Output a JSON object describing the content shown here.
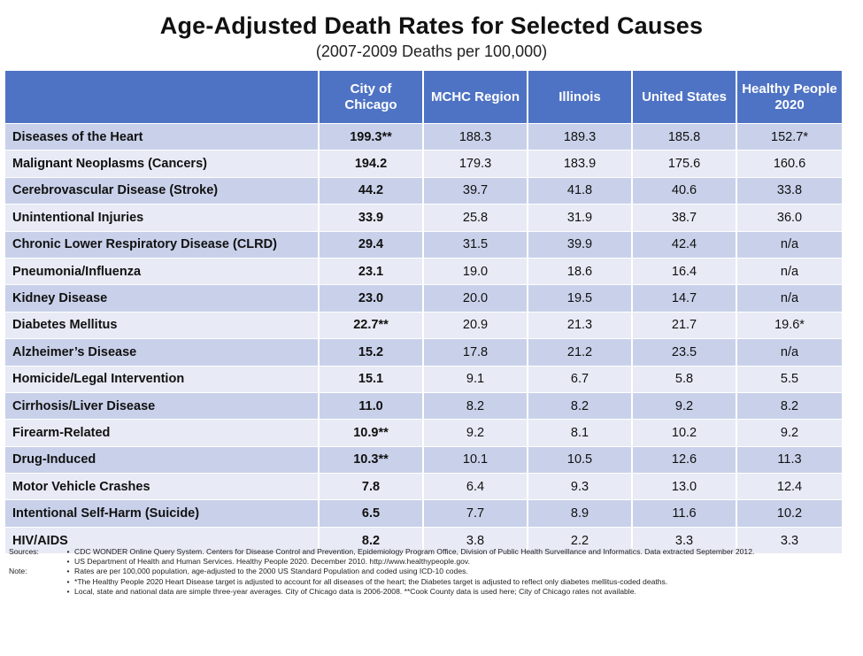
{
  "title": "Age-Adjusted Death Rates for Selected Causes",
  "subtitle": "(2007-2009 Deaths per 100,000)",
  "table": {
    "headers": [
      "",
      "City of Chicago",
      "MCHC Region",
      "Illinois",
      "United States",
      "Healthy People 2020"
    ],
    "rows": [
      {
        "cause": "Diseases of the Heart",
        "chicago": "199.3**",
        "mchc": "188.3",
        "illinois": "189.3",
        "us": "185.8",
        "hp2020": "152.7*"
      },
      {
        "cause": "Malignant Neoplasms (Cancers)",
        "chicago": "194.2",
        "mchc": "179.3",
        "illinois": "183.9",
        "us": "175.6",
        "hp2020": "160.6"
      },
      {
        "cause": "Cerebrovascular Disease (Stroke)",
        "chicago": "44.2",
        "mchc": "39.7",
        "illinois": "41.8",
        "us": "40.6",
        "hp2020": "33.8"
      },
      {
        "cause": "Unintentional Injuries",
        "chicago": "33.9",
        "mchc": "25.8",
        "illinois": "31.9",
        "us": "38.7",
        "hp2020": "36.0"
      },
      {
        "cause": "Chronic Lower Respiratory Disease (CLRD)",
        "chicago": "29.4",
        "mchc": "31.5",
        "illinois": "39.9",
        "us": "42.4",
        "hp2020": "n/a"
      },
      {
        "cause": "Pneumonia/Influenza",
        "chicago": "23.1",
        "mchc": "19.0",
        "illinois": "18.6",
        "us": "16.4",
        "hp2020": "n/a"
      },
      {
        "cause": "Kidney Disease",
        "chicago": "23.0",
        "mchc": "20.0",
        "illinois": "19.5",
        "us": "14.7",
        "hp2020": "n/a"
      },
      {
        "cause": "Diabetes Mellitus",
        "chicago": "22.7**",
        "mchc": "20.9",
        "illinois": "21.3",
        "us": "21.7",
        "hp2020": "19.6*"
      },
      {
        "cause": "Alzheimer’s Disease",
        "chicago": "15.2",
        "mchc": "17.8",
        "illinois": "21.2",
        "us": "23.5",
        "hp2020": "n/a"
      },
      {
        "cause": "Homicide/Legal Intervention",
        "chicago": "15.1",
        "mchc": "9.1",
        "illinois": "6.7",
        "us": "5.8",
        "hp2020": "5.5"
      },
      {
        "cause": "Cirrhosis/Liver Disease",
        "chicago": "11.0",
        "mchc": "8.2",
        "illinois": "8.2",
        "us": "9.2",
        "hp2020": "8.2"
      },
      {
        "cause": "Firearm-Related",
        "chicago": "10.9**",
        "mchc": "9.2",
        "illinois": "8.1",
        "us": "10.2",
        "hp2020": "9.2"
      },
      {
        "cause": "Drug-Induced",
        "chicago": "10.3**",
        "mchc": "10.1",
        "illinois": "10.5",
        "us": "12.6",
        "hp2020": "11.3"
      },
      {
        "cause": "Motor Vehicle Crashes",
        "chicago": "7.8",
        "mchc": "6.4",
        "illinois": "9.3",
        "us": "13.0",
        "hp2020": "12.4"
      },
      {
        "cause": "Intentional Self-Harm (Suicide)",
        "chicago": "6.5",
        "mchc": "7.7",
        "illinois": "8.9",
        "us": "11.6",
        "hp2020": "10.2"
      },
      {
        "cause": "HIV/AIDS",
        "chicago": "8.2",
        "mchc": "3.8",
        "illinois": "2.2",
        "us": "3.3",
        "hp2020": "3.3"
      }
    ]
  },
  "notes": {
    "sources_label": "Sources:",
    "sources": [
      "CDC WONDER Online Query System. Centers for Disease Control and Prevention, Epidemiology Program Office, Division of Public Health Surveillance and Informatics. Data extracted September 2012.",
      "US Department of Health and Human Services. Healthy People 2020. December 2010. http://www.healthypeople.gov."
    ],
    "note_label": "Note:",
    "notes": [
      "Rates are per 100,000 population, age-adjusted to the 2000 US Standard Population and coded using ICD-10 codes.",
      "*The Healthy People 2020 Heart Disease target is adjusted to account for all diseases of the heart; the Diabetes target is adjusted to reflect only diabetes mellitus-coded deaths.",
      "Local, state and national data are simple three-year averages. City of Chicago data is 2006-2008. **Cook County data is used here; City of Chicago rates not available."
    ],
    "bullet": "•"
  },
  "colors": {
    "header_bg": "#4f73c4",
    "row_dark": "#c9d1ea",
    "row_light": "#e8ebf5"
  }
}
